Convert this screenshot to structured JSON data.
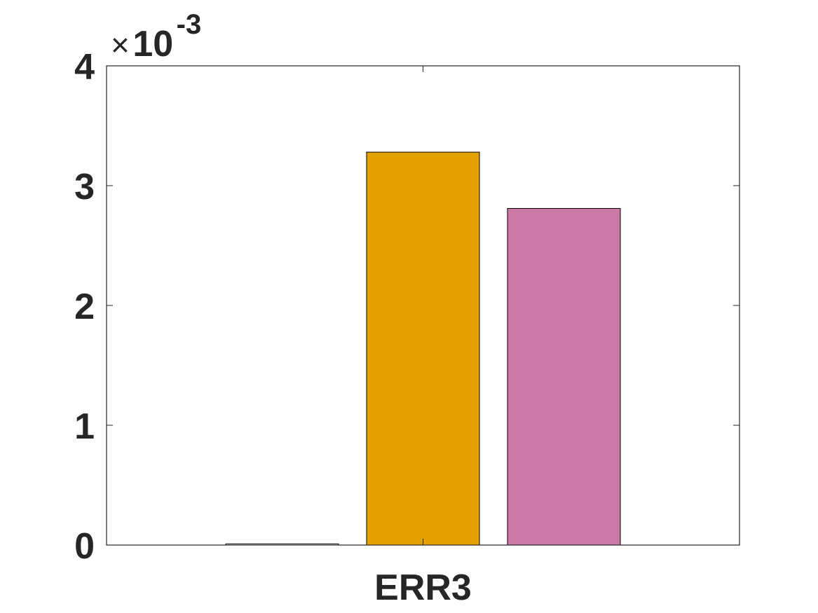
{
  "chart_data": {
    "type": "bar",
    "categories": [
      "ERR3"
    ],
    "series": [
      {
        "values": [
          1e-05
        ],
        "color": "#ffffff"
      },
      {
        "values": [
          0.00328
        ],
        "color": "#e3a100"
      },
      {
        "values": [
          0.00281
        ],
        "color": "#cc79a7"
      }
    ],
    "ylim": [
      0,
      0.004
    ],
    "yticks": [
      0,
      1,
      2,
      3,
      4
    ],
    "ytick_labels": [
      "0",
      "1",
      "2",
      "3",
      "4"
    ],
    "y_exponent": {
      "times": "×",
      "base": "10",
      "power": "-3"
    },
    "xtick_labels": [
      "ERR3"
    ],
    "title": "",
    "xlabel": "",
    "ylabel": "",
    "grid": false,
    "box": true
  }
}
